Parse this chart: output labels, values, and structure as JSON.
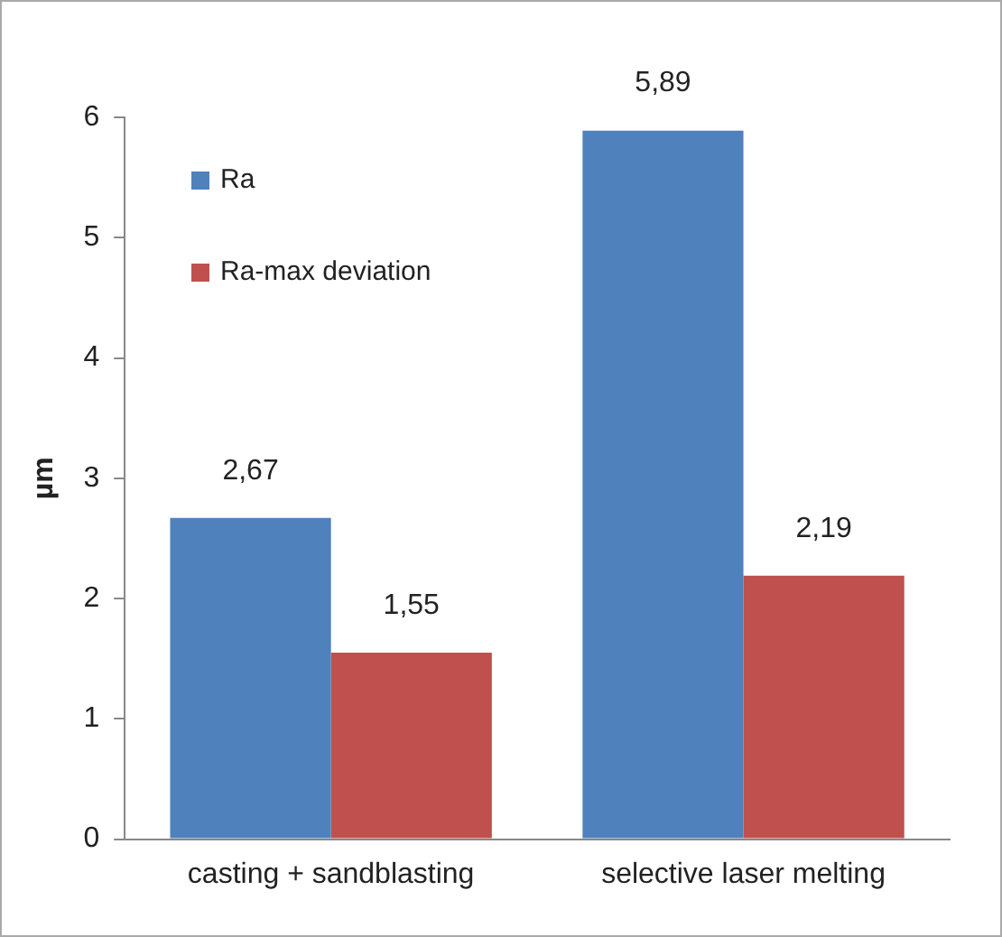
{
  "chart_data": {
    "type": "bar",
    "ylabel": "µm",
    "categories": [
      "casting + sandblasting",
      "selective laser melting"
    ],
    "series": [
      {
        "name": "Ra",
        "color": "#4f81bd",
        "values": [
          2.67,
          5.89
        ],
        "value_labels": [
          "2,67",
          "5,89"
        ]
      },
      {
        "name": "Ra-max deviation",
        "color": "#c0504d",
        "values": [
          1.55,
          2.19
        ],
        "value_labels": [
          "1,55",
          "2,19"
        ]
      }
    ],
    "ylim": [
      0,
      6
    ],
    "yticks": [
      0,
      1,
      2,
      3,
      4,
      5,
      6
    ],
    "grid": false,
    "legend": "top left"
  }
}
